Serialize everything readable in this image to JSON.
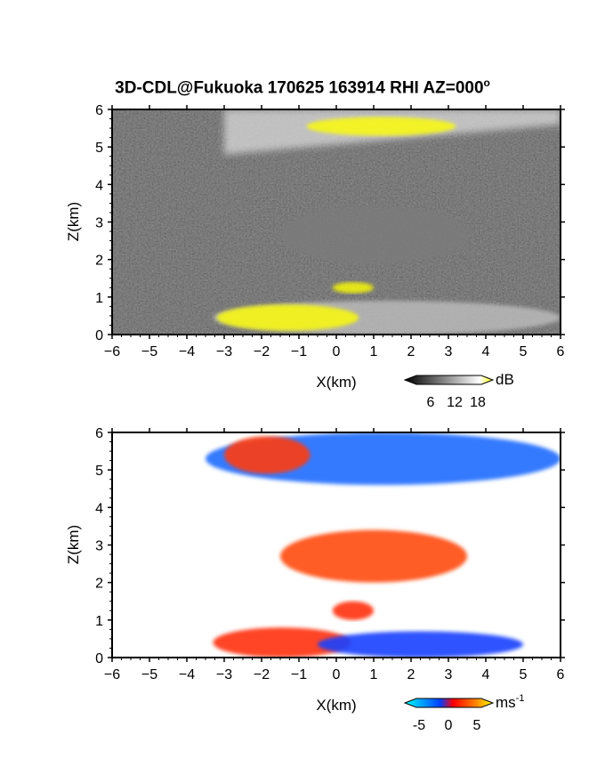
{
  "figure": {
    "title": "3D-CDL@Fukuoka 170625 163914 RHI AZ=000",
    "title_degree": "o"
  },
  "chart_data": [
    {
      "type": "heatmap",
      "name": "reflectivity",
      "xlabel": "X(km)",
      "ylabel": "Z(km)",
      "xlim": [
        -6,
        6
      ],
      "ylim": [
        0,
        6
      ],
      "xticks": [
        "-6",
        "-5",
        "-4",
        "-3",
        "-2",
        "-1",
        "0",
        "1",
        "2",
        "3",
        "4",
        "5",
        "6"
      ],
      "yticks": [
        "0",
        "1",
        "2",
        "3",
        "4",
        "5",
        "6"
      ],
      "background": "#2a2a2a",
      "colorbar": {
        "unit": "dB",
        "ticks": [
          "6",
          "12",
          "18"
        ],
        "colors": [
          "#000000",
          "#ffffff",
          "#ffff00"
        ]
      },
      "layers": [
        {
          "feature": "cirrus-layer",
          "x": [
            -3.0,
            6.0
          ],
          "z_bottom": [
            4.8,
            5.6
          ],
          "z_top": [
            6.0,
            6.0
          ],
          "level_db": 16,
          "color": "#d8d8d8"
        },
        {
          "feature": "cirrus-high-echo",
          "x": [
            -0.8,
            3.2
          ],
          "z": [
            5.3,
            5.8
          ],
          "level_db": 19,
          "color": "#ffff00"
        },
        {
          "feature": "mid-layer",
          "x": [
            -1.5,
            3.6
          ],
          "z": [
            1.9,
            3.4
          ],
          "level_db": 10,
          "color": "#7a7a7a"
        },
        {
          "feature": "small-cloud",
          "x": [
            -0.1,
            1.0
          ],
          "z": [
            1.1,
            1.4
          ],
          "level_db": 19,
          "color": "#ffff00"
        },
        {
          "feature": "boundary-layer",
          "x": [
            -3.3,
            6.0
          ],
          "z": [
            0.0,
            0.9
          ],
          "level_db": 14,
          "color": "#bdbdbd"
        },
        {
          "feature": "boundary-layer-high-echo",
          "x": [
            -3.2,
            0.6
          ],
          "z": [
            0.1,
            0.8
          ],
          "level_db": 19,
          "color": "#ffff00"
        }
      ]
    },
    {
      "type": "heatmap",
      "name": "doppler-velocity",
      "xlabel": "X(km)",
      "ylabel": "Z(km)",
      "xlim": [
        -6,
        6
      ],
      "ylim": [
        0,
        6
      ],
      "xticks": [
        "-6",
        "-5",
        "-4",
        "-3",
        "-2",
        "-1",
        "0",
        "1",
        "2",
        "3",
        "4",
        "5",
        "6"
      ],
      "yticks": [
        "0",
        "1",
        "2",
        "3",
        "4",
        "5",
        "6"
      ],
      "background": "#ffffff",
      "colorbar": {
        "unit": "ms",
        "unit_exponent": "-1",
        "ticks": [
          "-5",
          "0",
          "5"
        ],
        "colors": [
          "#00ffff",
          "#0040ff",
          "#ff0000",
          "#ff8000",
          "#ffff00"
        ]
      },
      "layers": [
        {
          "feature": "cirrus-approaching",
          "x": [
            -3.5,
            6.0
          ],
          "z": [
            4.6,
            6.0
          ],
          "velocity_ms": -3,
          "color": "#1e6cff"
        },
        {
          "feature": "cirrus-receding",
          "x": [
            -3.0,
            -0.7
          ],
          "z": [
            4.9,
            5.9
          ],
          "velocity_ms": 2,
          "color": "#ff3a10"
        },
        {
          "feature": "mid-layer-mixed",
          "x": [
            -1.5,
            3.5
          ],
          "z": [
            2.0,
            3.4
          ],
          "velocity_ms": 1,
          "color": "#ff4a10"
        },
        {
          "feature": "small-cloud",
          "x": [
            -0.1,
            1.0
          ],
          "z": [
            1.0,
            1.5
          ],
          "velocity_ms": 2,
          "color": "#ff3010"
        },
        {
          "feature": "boundary-layer-receding",
          "x": [
            -3.3,
            0.4
          ],
          "z": [
            0.0,
            0.8
          ],
          "velocity_ms": 2,
          "color": "#ff3010"
        },
        {
          "feature": "boundary-layer-approaching",
          "x": [
            -0.5,
            5.0
          ],
          "z": [
            0.0,
            0.7
          ],
          "velocity_ms": -3,
          "color": "#1840ff"
        }
      ]
    }
  ]
}
